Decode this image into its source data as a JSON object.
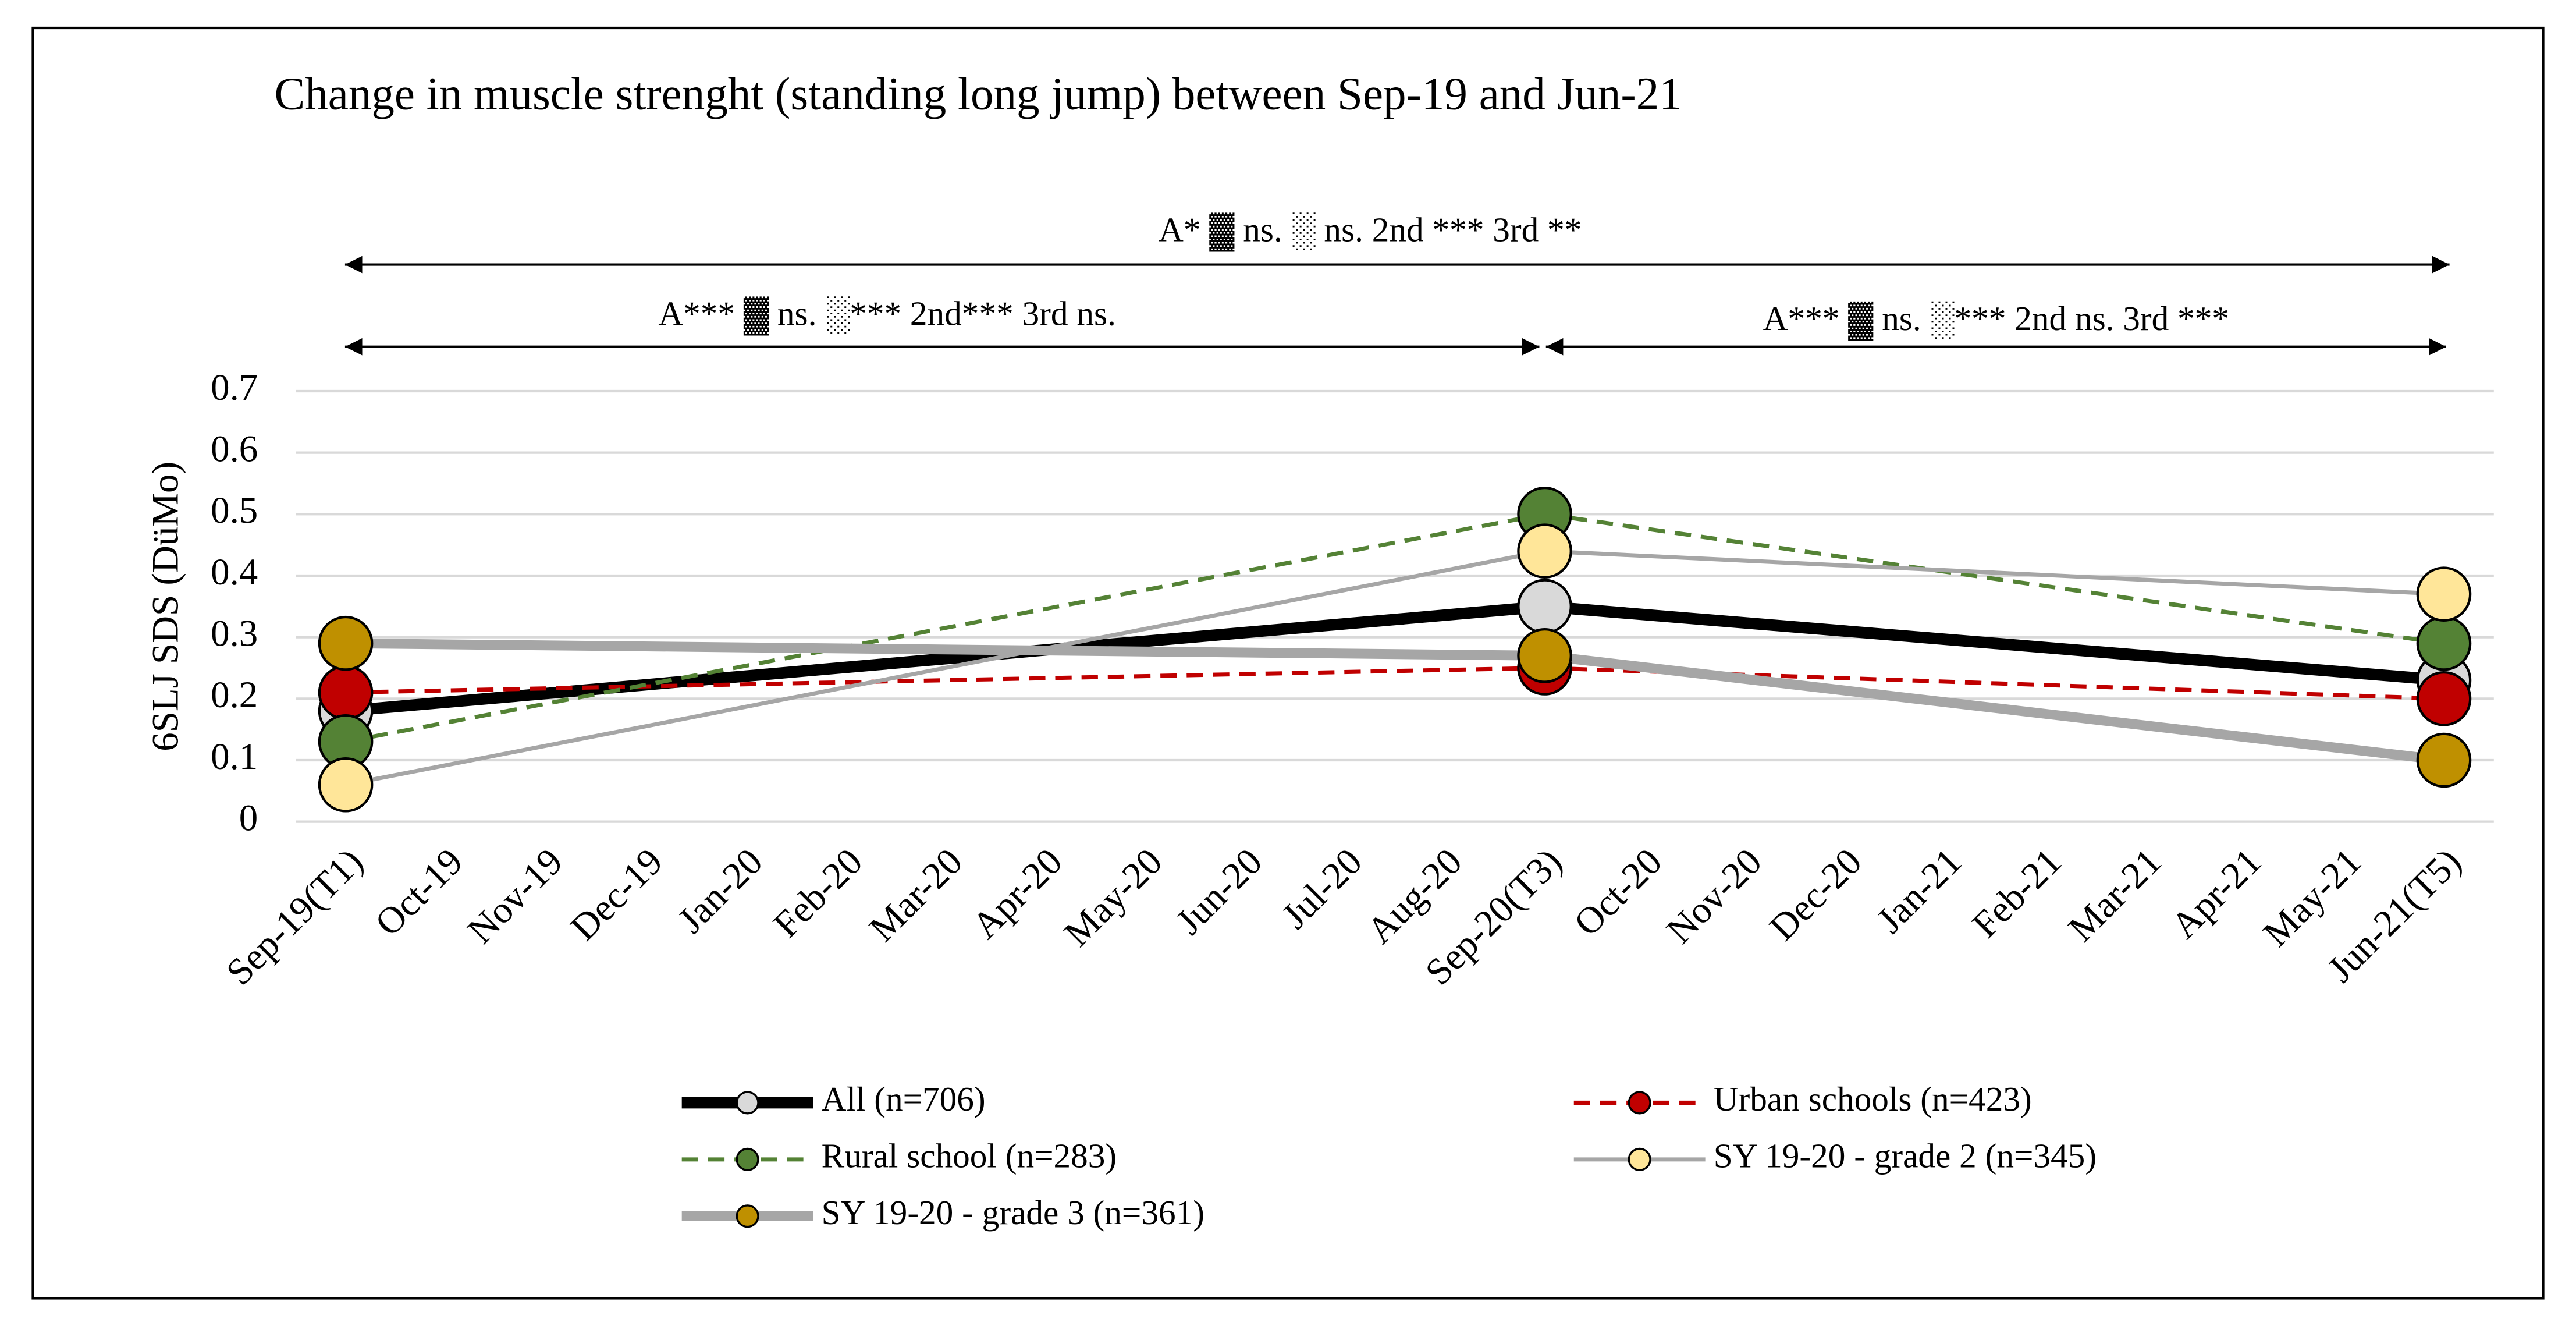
{
  "chart_data": {
    "type": "line",
    "title": "Change in muscle strenght (standing long jump) between Sep-19 and Jun-21",
    "y_label": "6SLJ SDS (DüMo)",
    "annotations": [
      "A* ▓ ns. ░ ns. 2nd *** 3rd **",
      "A*** ▓ ns. ░*** 2nd*** 3rd ns.",
      "A*** ▓ ns. ░*** 2nd ns. 3rd ***"
    ],
    "categories": [
      "Sep-19(T1)",
      "Oct-19",
      "Nov-19",
      "Dec-19",
      "Jan-20",
      "Feb-20",
      "Mar-20",
      "Apr-20",
      "May-20",
      "Jun-20",
      "Jul-20",
      "Aug-20",
      "Sep-20(T3)",
      "Oct-20",
      "Nov-20",
      "Dec-20",
      "Jan-21",
      "Feb-21",
      "Mar-21",
      "Apr-21",
      "May-21",
      "Jun-21(T5)"
    ],
    "connect_gaps": true,
    "series": [
      {
        "name": "All (n=706)",
        "color": "#000000",
        "marker_color": "#d9d9d9",
        "line_width": 7,
        "dashed": false,
        "values": [
          0.18,
          null,
          null,
          null,
          null,
          null,
          null,
          null,
          null,
          null,
          null,
          null,
          0.35,
          null,
          null,
          null,
          null,
          null,
          null,
          null,
          null,
          0.23
        ]
      },
      {
        "name": "Urban schools (n=423)",
        "color": "#c00000",
        "marker_color": "#c00000",
        "line_width": 2.5,
        "dashed": true,
        "values": [
          0.21,
          null,
          null,
          null,
          null,
          null,
          null,
          null,
          null,
          null,
          null,
          null,
          0.25,
          null,
          null,
          null,
          null,
          null,
          null,
          null,
          null,
          0.2
        ]
      },
      {
        "name": "Rural school (n=283)",
        "color": "#548235",
        "marker_color": "#548235",
        "line_width": 2.5,
        "dashed": true,
        "values": [
          0.13,
          null,
          null,
          null,
          null,
          null,
          null,
          null,
          null,
          null,
          null,
          null,
          0.5,
          null,
          null,
          null,
          null,
          null,
          null,
          null,
          null,
          0.29
        ]
      },
      {
        "name": "SY 19-20 - grade 2 (n=345)",
        "color": "#a6a6a6",
        "marker_color": "#ffe699",
        "line_width": 2.5,
        "dashed": false,
        "values": [
          0.06,
          null,
          null,
          null,
          null,
          null,
          null,
          null,
          null,
          null,
          null,
          null,
          0.44,
          null,
          null,
          null,
          null,
          null,
          null,
          null,
          null,
          0.37
        ]
      },
      {
        "name": "SY 19-20 - grade 3 (n=361)",
        "color": "#a6a6a6",
        "marker_color": "#bf9000",
        "line_width": 6,
        "dashed": false,
        "values": [
          0.29,
          null,
          null,
          null,
          null,
          null,
          null,
          null,
          null,
          null,
          null,
          null,
          0.27,
          null,
          null,
          null,
          null,
          null,
          null,
          null,
          null,
          0.1
        ]
      }
    ],
    "ylim": [
      0,
      0.7
    ],
    "yticks": [
      0,
      0.1,
      0.2,
      0.3,
      0.4,
      0.5,
      0.6,
      0.7
    ],
    "grid": true
  }
}
